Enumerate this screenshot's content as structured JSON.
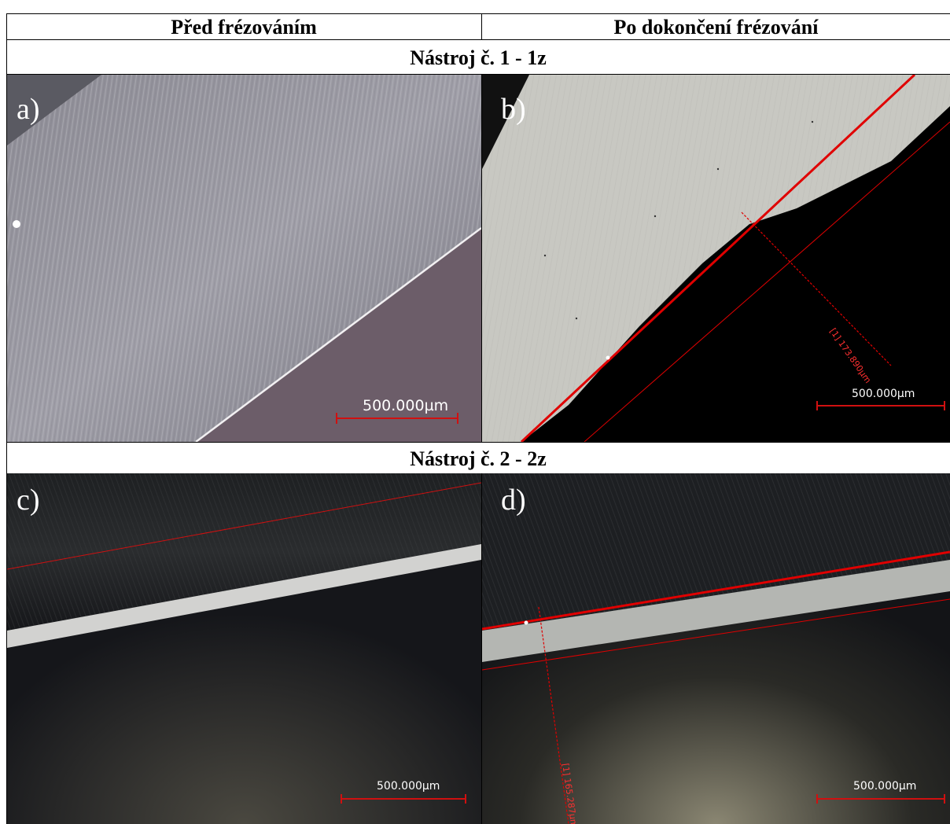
{
  "table": {
    "col_left_header": "Před frézováním",
    "col_right_header": "Po dokončení frézování",
    "tool1_header": "Nástroj č. 1 - 1z",
    "tool2_header": "Nástroj č. 2 - 2z"
  },
  "panels": {
    "a": {
      "label": "a)",
      "scale": "500.000µm"
    },
    "b": {
      "label": "b)",
      "scale": "500.000µm",
      "measure": "[1] 173.890µm"
    },
    "c": {
      "label": "c)",
      "scale": "500.000µm"
    },
    "d": {
      "label": "d)",
      "scale": "500.000µm",
      "measure": "[1] 165.287µm"
    }
  },
  "colors": {
    "measure_red": "#e00000",
    "scale_red": "#d01010"
  }
}
